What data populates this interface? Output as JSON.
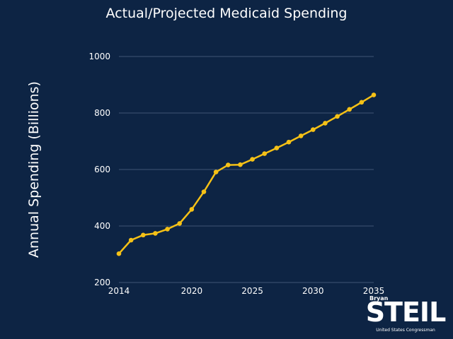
{
  "chart_data": {
    "type": "line",
    "title": "Actual/Projected Medicaid Spending",
    "xlabel": "",
    "ylabel": "Annual Spending (Billions)",
    "x": [
      2014,
      2015,
      2016,
      2017,
      2018,
      2019,
      2020,
      2021,
      2022,
      2023,
      2024,
      2025,
      2026,
      2027,
      2028,
      2029,
      2030,
      2031,
      2032,
      2033,
      2034,
      2035
    ],
    "series": [
      {
        "values": [
          302,
          350,
          368,
          374,
          389,
          409,
          459,
          521,
          591,
          616,
          617,
          636,
          656,
          676,
          697,
          719,
          741,
          764,
          788,
          813,
          838,
          864
        ]
      }
    ],
    "xticks": [
      "2014",
      "2020",
      "2025",
      "2030",
      "2035"
    ],
    "yticks": [
      "200",
      "400",
      "600",
      "800",
      "1000"
    ],
    "xlim": [
      2014,
      2035
    ],
    "ylim": [
      200,
      1000
    ],
    "grid": true,
    "line_color": "#f5c116",
    "background": "#0d2444"
  },
  "logo": {
    "first": "Bryan",
    "last": "STEIL",
    "subtitle": "United States Congressman"
  }
}
